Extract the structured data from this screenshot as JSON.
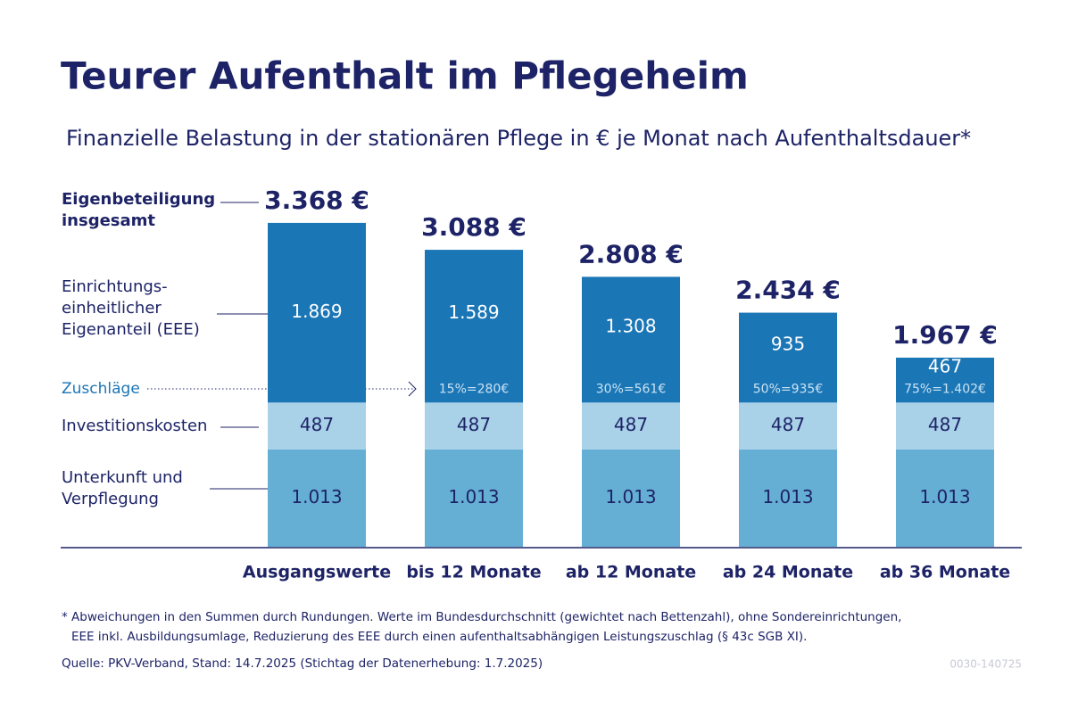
{
  "chart_data": {
    "type": "stacked_bar",
    "title": "Teurer Aufenthalt im Pflegeheim",
    "subtitle": "Finanzielle Belastung in der stationären Pflege in € je Monat nach Aufenthaltsdauer*",
    "categories": [
      "Ausgangswerte",
      "bis 12 Monate",
      "ab 12 Monate",
      "ab 24 Monate",
      "ab 36 Monate"
    ],
    "series": [
      {
        "name": "Unterkunft und Verpflegung",
        "color": "#65afd5",
        "values": [
          1013,
          1013,
          1013,
          1013,
          1013
        ],
        "value_labels": [
          "1.013",
          "1.013",
          "1.013",
          "1.013",
          "1.013"
        ]
      },
      {
        "name": "Investitionskosten",
        "color": "#a9d2e9",
        "values": [
          487,
          487,
          487,
          487,
          487
        ]
      },
      {
        "name": "Einrichtungs-einheitlicher Eigenanteil (EEE)",
        "color": "#1b76b6",
        "values": [
          1869,
          1589,
          1308,
          935,
          467
        ],
        "value_labels": [
          "1.869",
          "1.589",
          "1.308",
          "935",
          "467"
        ]
      }
    ],
    "surcharges": {
      "name": "Zuschläge",
      "labels": [
        null,
        "15%=280€",
        "30%=561€",
        "50%=935€",
        "75%=1.402€"
      ]
    },
    "totals": {
      "name": "Eigenbeteiligung insgesamt",
      "values": [
        3368,
        3088,
        2808,
        2434,
        1967
      ],
      "value_labels": [
        "3.368 €",
        "3.088 €",
        "2.808 €",
        "2.434 €",
        "1.967 €"
      ]
    },
    "notes": [
      "* Abweichungen in den Summen durch Rundungen. Werte im Bundesdurchschnitt (gewichtet nach Bettenzahl), ohne Sondereinrichtungen,",
      "EEE inkl. Ausbildungsumlage, Reduzierung des EEE durch einen aufenthaltsabhängigen Leistungszuschlag (§ 43c SGB XI)."
    ],
    "source": "Quelle: PKV-Verband, Stand: 14.7.2025 (Stichtag der Datenerhebung: 1.7.2025)",
    "code": "0030-140725"
  }
}
